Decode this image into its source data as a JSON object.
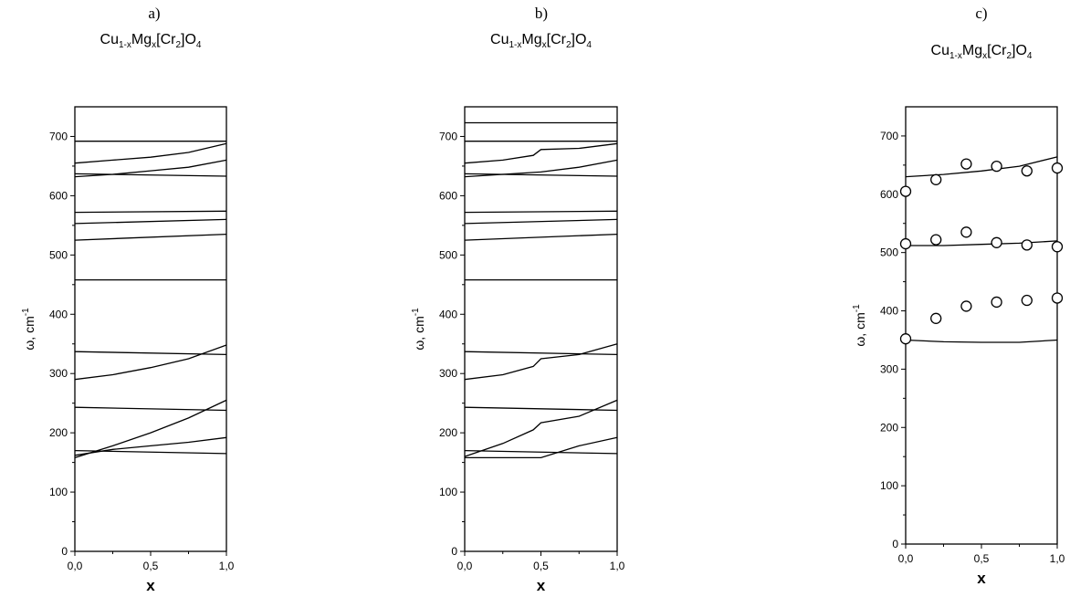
{
  "figure": {
    "title_parts": [
      "Cu",
      "1-x",
      "Mg",
      "x",
      "[Cr",
      "2",
      "]O",
      "4"
    ],
    "ylabel_main": "ω,  cm",
    "ylabel_sup": "-1",
    "xlabel": "x",
    "colors": {
      "line": "#000000",
      "background": "#ffffff"
    }
  },
  "chart_data": [
    {
      "type": "line",
      "panel": "a)",
      "xlim": [
        0,
        1
      ],
      "ylim": [
        0,
        750
      ],
      "x_ticks": [
        0,
        0.5,
        1
      ],
      "x_tick_labels": [
        "0,0",
        "0,5",
        "1,0"
      ],
      "y_ticks": [
        0,
        100,
        200,
        300,
        400,
        500,
        600,
        700
      ],
      "y_tick_labels": [
        "0",
        "100",
        "200",
        "300",
        "400",
        "500",
        "600",
        "700"
      ],
      "series": [
        {
          "x": [
            0,
            1
          ],
          "y": [
            692,
            692
          ]
        },
        {
          "x": [
            0,
            0.25,
            0.5,
            0.75,
            1
          ],
          "y": [
            655,
            660,
            665,
            673,
            688
          ]
        },
        {
          "x": [
            0,
            0.25,
            0.5,
            0.75,
            1
          ],
          "y": [
            632,
            636,
            642,
            648,
            660
          ]
        },
        {
          "x": [
            0,
            1
          ],
          "y": [
            637,
            633
          ]
        },
        {
          "x": [
            0,
            1
          ],
          "y": [
            572,
            574
          ]
        },
        {
          "x": [
            0,
            1
          ],
          "y": [
            553,
            560
          ]
        },
        {
          "x": [
            0,
            1
          ],
          "y": [
            525,
            535
          ]
        },
        {
          "x": [
            0,
            1
          ],
          "y": [
            458,
            458
          ]
        },
        {
          "x": [
            0,
            1
          ],
          "y": [
            337,
            332
          ]
        },
        {
          "x": [
            0,
            0.25,
            0.5,
            0.75,
            1
          ],
          "y": [
            290,
            298,
            310,
            325,
            348
          ]
        },
        {
          "x": [
            0,
            1
          ],
          "y": [
            243,
            238
          ]
        },
        {
          "x": [
            0,
            0.25,
            0.5,
            0.75,
            1
          ],
          "y": [
            158,
            178,
            200,
            225,
            255
          ]
        },
        {
          "x": [
            0,
            0.25,
            0.5,
            0.75,
            1
          ],
          "y": [
            162,
            172,
            178,
            184,
            192
          ]
        },
        {
          "x": [
            0,
            1
          ],
          "y": [
            170,
            165
          ]
        }
      ],
      "points": []
    },
    {
      "type": "line",
      "panel": "b)",
      "xlim": [
        0,
        1
      ],
      "ylim": [
        0,
        750
      ],
      "x_ticks": [
        0,
        0.5,
        1
      ],
      "x_tick_labels": [
        "0,0",
        "0,5",
        "1,0"
      ],
      "y_ticks": [
        0,
        100,
        200,
        300,
        400,
        500,
        600,
        700
      ],
      "y_tick_labels": [
        "0",
        "100",
        "200",
        "300",
        "400",
        "500",
        "600",
        "700"
      ],
      "series": [
        {
          "x": [
            0,
            1
          ],
          "y": [
            723,
            723
          ]
        },
        {
          "x": [
            0,
            1
          ],
          "y": [
            692,
            692
          ]
        },
        {
          "x": [
            0,
            0.25,
            0.45,
            0.5,
            0.75,
            1
          ],
          "y": [
            655,
            660,
            668,
            678,
            680,
            688
          ]
        },
        {
          "x": [
            0,
            0.25,
            0.5,
            0.75,
            1
          ],
          "y": [
            632,
            636,
            640,
            648,
            660
          ]
        },
        {
          "x": [
            0,
            1
          ],
          "y": [
            637,
            633
          ]
        },
        {
          "x": [
            0,
            1
          ],
          "y": [
            572,
            574
          ]
        },
        {
          "x": [
            0,
            1
          ],
          "y": [
            553,
            560
          ]
        },
        {
          "x": [
            0,
            1
          ],
          "y": [
            525,
            535
          ]
        },
        {
          "x": [
            0,
            1
          ],
          "y": [
            458,
            458
          ]
        },
        {
          "x": [
            0,
            1
          ],
          "y": [
            337,
            332
          ]
        },
        {
          "x": [
            0,
            0.25,
            0.45,
            0.5,
            0.75,
            1
          ],
          "y": [
            290,
            298,
            312,
            325,
            332,
            350
          ]
        },
        {
          "x": [
            0,
            1
          ],
          "y": [
            243,
            238
          ]
        },
        {
          "x": [
            0,
            0.25,
            0.45,
            0.5,
            0.75,
            1
          ],
          "y": [
            160,
            182,
            205,
            217,
            228,
            255
          ]
        },
        {
          "x": [
            0,
            0.45,
            0.5,
            0.75,
            1
          ],
          "y": [
            158,
            158,
            158,
            178,
            192
          ]
        },
        {
          "x": [
            0,
            1
          ],
          "y": [
            170,
            165
          ]
        }
      ],
      "points": []
    },
    {
      "type": "line",
      "panel": "c)",
      "xlim": [
        0,
        1
      ],
      "ylim": [
        0,
        750
      ],
      "x_ticks": [
        0,
        0.5,
        1
      ],
      "x_tick_labels": [
        "0,0",
        "0,5",
        "1,0"
      ],
      "y_ticks": [
        0,
        100,
        200,
        300,
        400,
        500,
        600,
        700
      ],
      "y_tick_labels": [
        "0",
        "100",
        "200",
        "300",
        "400",
        "500",
        "600",
        "700"
      ],
      "series": [
        {
          "x": [
            0,
            0.25,
            0.5,
            0.75,
            1
          ],
          "y": [
            630,
            634,
            640,
            648,
            664
          ]
        },
        {
          "x": [
            0,
            0.25,
            0.5,
            0.75,
            1
          ],
          "y": [
            512,
            512,
            514,
            516,
            520
          ]
        },
        {
          "x": [
            0,
            0.25,
            0.5,
            0.75,
            1
          ],
          "y": [
            350,
            347,
            346,
            346,
            350
          ]
        }
      ],
      "points": [
        {
          "x": 0,
          "y": 605
        },
        {
          "x": 0.2,
          "y": 625
        },
        {
          "x": 0.4,
          "y": 652
        },
        {
          "x": 0.6,
          "y": 648
        },
        {
          "x": 0.8,
          "y": 640
        },
        {
          "x": 1,
          "y": 645
        },
        {
          "x": 0,
          "y": 515
        },
        {
          "x": 0.2,
          "y": 522
        },
        {
          "x": 0.4,
          "y": 535
        },
        {
          "x": 0.6,
          "y": 517
        },
        {
          "x": 0.8,
          "y": 513
        },
        {
          "x": 1,
          "y": 510
        },
        {
          "x": 0,
          "y": 352
        },
        {
          "x": 0.2,
          "y": 387
        },
        {
          "x": 0.4,
          "y": 408
        },
        {
          "x": 0.6,
          "y": 415
        },
        {
          "x": 0.8,
          "y": 418
        },
        {
          "x": 1,
          "y": 422
        }
      ]
    }
  ]
}
